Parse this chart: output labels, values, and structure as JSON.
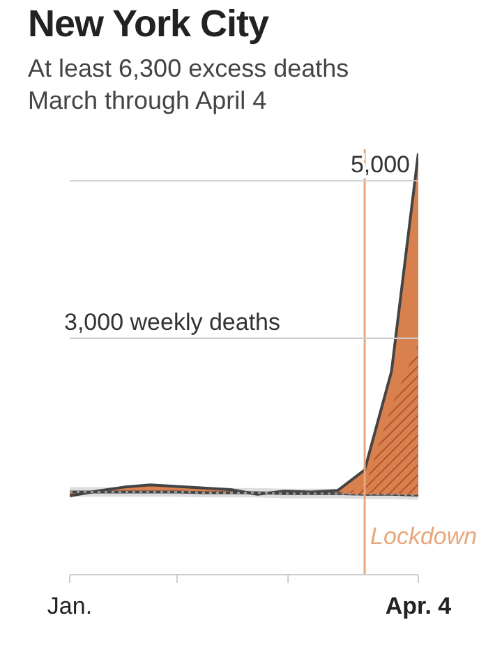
{
  "chart_data": {
    "type": "area",
    "title": "New York City",
    "subtitle": "At least 6,300 excess deaths March through April 4",
    "x": [
      "--01-04",
      "--01-11",
      "--01-18",
      "--01-25",
      "--02-01",
      "--02-08",
      "--02-15",
      "--02-22",
      "--02-29",
      "--03-07",
      "--03-14",
      "--03-21",
      "--03-28",
      "--04-04"
    ],
    "series": [
      {
        "type": "line",
        "color": "#999999",
        "line_style": "dotted",
        "values": [
          1050,
          1050,
          1050,
          1050,
          1050,
          1040,
          1040,
          1040,
          1030,
          1030,
          1030,
          1020,
          1020,
          1010
        ],
        "lower": [
          990,
          990,
          990,
          990,
          990,
          980,
          980,
          980,
          970,
          970,
          970,
          960,
          960,
          950
        ],
        "upper": [
          1110,
          1110,
          1110,
          1110,
          1110,
          1100,
          1100,
          1100,
          1090,
          1090,
          1090,
          1080,
          1080,
          1070
        ]
      },
      {
        "color": "#d9804f",
        "values": [
          1000,
          1060,
          1110,
          1140,
          1120,
          1100,
          1080,
          1020,
          1060,
          1050,
          1070,
          1330,
          2580,
          5350
        ]
      },
      {
        "color": "#b5532a",
        "values": [
          null,
          null,
          null,
          null,
          null,
          null,
          null,
          null,
          null,
          null,
          1030,
          1100,
          2140,
          2930
        ]
      }
    ],
    "xlim": [
      "--01-04",
      "--04-04"
    ],
    "xticks": [
      {
        "value": "--01-04",
        "label": "Jan."
      },
      {
        "value": "--02-01",
        "label": null
      },
      {
        "value": "--03-01",
        "label": null
      },
      {
        "value": "--04-04",
        "label": "Apr. 4"
      }
    ],
    "ylim": [
      0,
      5400
    ],
    "tick_labels": "x",
    "ref_lines": [
      {
        "axis": "y",
        "value": 3000,
        "label": "3,000 weekly deaths",
        "color": "#cccccc"
      },
      {
        "axis": "y",
        "value": 5000,
        "label": "5,000",
        "color": "#cccccc"
      },
      {
        "axis": "x",
        "value": "--03-21",
        "label": "Lockdown",
        "color": "#e8a77c"
      }
    ]
  }
}
